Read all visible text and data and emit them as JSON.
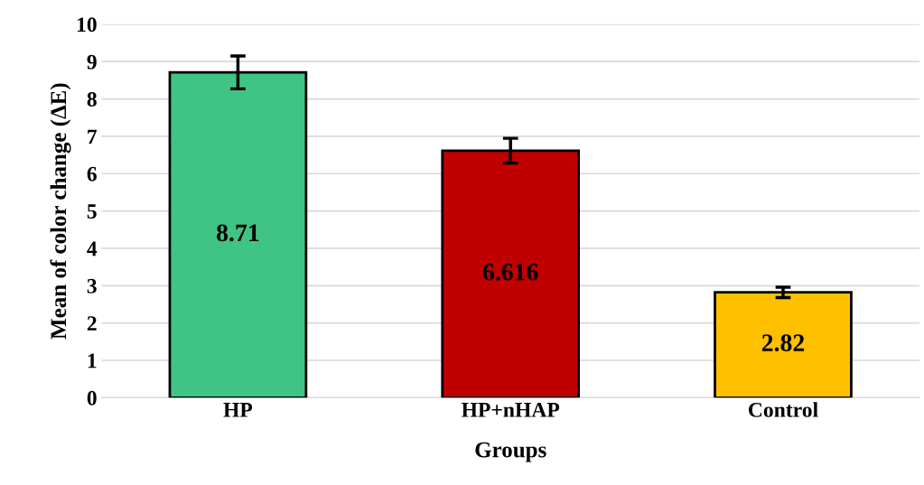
{
  "chart_data": {
    "type": "bar",
    "xlabel": "Groups",
    "ylabel": "Mean of color change (ΔE)",
    "categories": [
      "HP",
      "HP+nHAP",
      "Control"
    ],
    "values": [
      8.71,
      6.616,
      2.82
    ],
    "colors": [
      "#40c484",
      "#c00000",
      "#ffc000"
    ],
    "errors": [
      0.44,
      0.33,
      0.14
    ],
    "data_labels": true,
    "ylim": [
      0,
      10
    ],
    "yticks": [
      0,
      1,
      2,
      3,
      4,
      5,
      6,
      7,
      8,
      9,
      10
    ],
    "grid": "y"
  }
}
